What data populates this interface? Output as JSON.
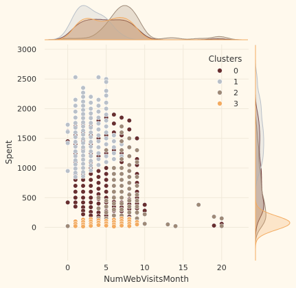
{
  "chart_data": {
    "type": "scatter",
    "title": "",
    "xlabel": "NumWebVisitsMonth",
    "ylabel": "Spent",
    "xlim": [
      -3,
      23.5
    ],
    "ylim": [
      -560,
      3080
    ],
    "x_ticks": [
      0,
      5,
      10,
      15,
      20
    ],
    "y_ticks": [
      0,
      500,
      1000,
      1500,
      2000,
      2500,
      3000
    ],
    "grid": true,
    "legend": {
      "title": "Clusters",
      "position": "top-right"
    },
    "marginals": {
      "top": "kde-by-cluster",
      "right": "kde-by-cluster"
    },
    "series": [
      {
        "name": "0",
        "color": "#682F2F",
        "columns": [
          {
            "x": 0,
            "y": [
              1450,
              1620,
              420
            ]
          },
          {
            "x": 1,
            "y": [
              1700,
              1550,
              1400,
              1250,
              1100,
              1000,
              900,
              800,
              700,
              600,
              500,
              420,
              350
            ]
          },
          {
            "x": 2,
            "y": [
              1900,
              1750,
              1600,
              1450,
              1300,
              1150,
              1000,
              900,
              800,
              700,
              600,
              500,
              420,
              340,
              280,
              220
            ]
          },
          {
            "x": 3,
            "y": [
              2000,
              1850,
              1700,
              1550,
              1400,
              1250,
              1100,
              1000,
              900,
              800,
              700,
              600,
              500,
              420,
              340,
              260,
              200
            ]
          },
          {
            "x": 4,
            "y": [
              1950,
              1800,
              1650,
              1500,
              1350,
              1200,
              1050,
              950,
              850,
              750,
              650,
              560,
              480,
              400,
              320,
              250,
              190
            ]
          },
          {
            "x": 5,
            "y": [
              1850,
              1700,
              1550,
              1400,
              1250,
              1100,
              1000,
              900,
              800,
              700,
              600,
              500,
              420,
              340,
              270,
              200
            ]
          },
          {
            "x": 6,
            "y": [
              1900,
              1750,
              1600,
              1450,
              1300,
              1150,
              1000,
              900,
              800,
              700,
              600,
              510,
              430,
              350,
              280,
              210
            ]
          },
          {
            "x": 7,
            "y": [
              1850,
              1700,
              1550,
              1400,
              1250,
              1100,
              1000,
              900,
              800,
              700,
              600,
              500,
              420,
              340,
              270,
              200,
              140
            ]
          },
          {
            "x": 8,
            "y": [
              1800,
              1650,
              1500,
              1350,
              1200,
              1050,
              950,
              850,
              750,
              650,
              560,
              470,
              390,
              310,
              240,
              180
            ]
          },
          {
            "x": 9,
            "y": [
              1500,
              1150,
              1050,
              900,
              750,
              600,
              500,
              400,
              320,
              240
            ]
          },
          {
            "x": 10,
            "y": [
              380,
              280
            ]
          },
          {
            "x": 19,
            "y": [
              30
            ]
          },
          {
            "x": 20,
            "y": [
              60
            ]
          }
        ]
      },
      {
        "name": "1",
        "color": "#B9C0C9",
        "columns": [
          {
            "x": 0,
            "y": [
              1730,
              1610,
              1420,
              950
            ]
          },
          {
            "x": 1,
            "y": [
              2530,
              2150,
              2050,
              1950,
              1850,
              1760,
              1680,
              1600,
              1520,
              1440,
              1360,
              1280,
              1200,
              1130,
              1060,
              990,
              920,
              850
            ]
          },
          {
            "x": 2,
            "y": [
              2350,
              2270,
              2200,
              2120,
              2050,
              1980,
              1910,
              1840,
              1770,
              1700,
              1630,
              1560,
              1490,
              1420,
              1350,
              1280,
              1210,
              1140,
              1070,
              1000,
              930,
              860
            ]
          },
          {
            "x": 3,
            "y": [
              2200,
              2100,
              2000,
              1920,
              1840,
              1760,
              1680,
              1600,
              1520,
              1440,
              1360,
              1280,
              1200,
              1120,
              1040,
              960
            ]
          },
          {
            "x": 4,
            "y": [
              2530,
              2150,
              2050,
              1950,
              1850,
              1750,
              1650,
              1550,
              1450,
              1350,
              1250,
              1150,
              1050
            ]
          },
          {
            "x": 5,
            "y": [
              2500,
              2450,
              2300,
              2220,
              2100,
              2000,
              1900,
              1800,
              1700,
              1600,
              1500,
              1400,
              1300,
              1200,
              1100
            ]
          },
          {
            "x": 6,
            "y": [
              1550,
              1450,
              1350,
              1250,
              1150
            ]
          },
          {
            "x": 7,
            "y": [
              1600,
              1400,
              1200
            ]
          }
        ]
      },
      {
        "name": "2",
        "color": "#9E8A78",
        "columns": [
          {
            "x": 0,
            "y": [
              20
            ]
          },
          {
            "x": 2,
            "y": [
              60
            ]
          },
          {
            "x": 4,
            "y": [
              500,
              320,
              150
            ]
          },
          {
            "x": 5,
            "y": [
              1300,
              450,
              350,
              250,
              150
            ]
          },
          {
            "x": 6,
            "y": [
              1000,
              900,
              800,
              700,
              600,
              500,
              400,
              300,
              200,
              120
            ]
          },
          {
            "x": 7,
            "y": [
              1700,
              1600,
              1450,
              1300,
              1150,
              1000,
              900,
              800,
              700,
              600,
              500,
              400,
              300,
              200
            ]
          },
          {
            "x": 8,
            "y": [
              1500,
              1350,
              1200,
              1050,
              950,
              850,
              750,
              650,
              550,
              450,
              350,
              250,
              150
            ]
          },
          {
            "x": 9,
            "y": [
              1300,
              1100,
              850,
              700,
              550,
              450,
              350,
              250,
              150,
              60
            ]
          },
          {
            "x": 10,
            "y": [
              220,
              60
            ]
          },
          {
            "x": 13,
            "y": [
              50
            ]
          },
          {
            "x": 14,
            "y": [
              20
            ]
          },
          {
            "x": 17,
            "y": [
              380
            ]
          },
          {
            "x": 19,
            "y": [
              180
            ]
          },
          {
            "x": 20,
            "y": [
              150,
              20
            ]
          }
        ]
      },
      {
        "name": "3",
        "color": "#F3AB60",
        "columns": [
          {
            "x": 1,
            "y": [
              100,
              60,
              20
            ]
          },
          {
            "x": 2,
            "y": [
              130,
              90,
              50,
              15
            ]
          },
          {
            "x": 3,
            "y": [
              140,
              100,
              60,
              25
            ]
          },
          {
            "x": 4,
            "y": [
              120,
              80,
              40
            ]
          },
          {
            "x": 5,
            "y": [
              110,
              70,
              30
            ]
          },
          {
            "x": 6,
            "y": [
              130,
              90,
              50,
              15
            ]
          },
          {
            "x": 7,
            "y": [
              150,
              110,
              70,
              30
            ]
          },
          {
            "x": 8,
            "y": [
              140,
              100,
              60,
              20
            ]
          },
          {
            "x": 9,
            "y": [
              90,
              50
            ]
          }
        ]
      }
    ]
  }
}
